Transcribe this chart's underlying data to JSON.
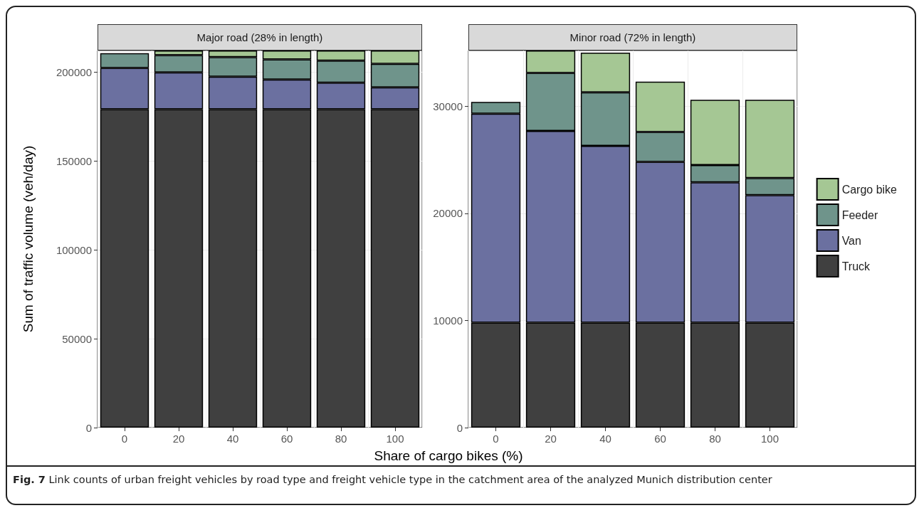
{
  "chart_data": [
    {
      "type": "bar",
      "title": "Major road (28% in length)",
      "xlabel": "Share of cargo bikes (%)",
      "ylabel": "Sum of traffic volume (veh/day)",
      "categories": [
        "0",
        "20",
        "40",
        "60",
        "80",
        "100"
      ],
      "stacked": true,
      "ylim": [
        0,
        212000
      ],
      "yticks": [
        0,
        50000,
        100000,
        150000,
        200000
      ],
      "grid": true,
      "legend": false,
      "series": [
        {
          "color": "#404040",
          "values": [
            179000,
            179000,
            179000,
            179000,
            179000,
            179000
          ]
        },
        {
          "color": "#6b70a0",
          "values": [
            23200,
            20700,
            18300,
            16700,
            14900,
            12300
          ]
        },
        {
          "color": "#6f948b",
          "values": [
            8300,
            9700,
            11000,
            11300,
            12400,
            13200
          ]
        },
        {
          "color": "#a5c794",
          "values": [
            null,
            2600,
            3700,
            5000,
            5700,
            7500
          ]
        }
      ],
      "annotations": [
        "Fig. 7 Link counts of urban freight vehicles by road type and freight vehicle type in the catchment area of the analyzed Munich distribution center"
      ]
    },
    {
      "type": "bar",
      "title": "Minor road (72% in length)",
      "categories": [
        "0",
        "20",
        "40",
        "60",
        "80",
        "100"
      ],
      "stacked": true,
      "ylim": [
        0,
        35200
      ],
      "yticks": [
        0,
        10000,
        20000,
        30000
      ],
      "grid": true,
      "legend": "right",
      "series": [
        {
          "name": "Truck",
          "color": "#404040",
          "values": [
            9800,
            9800,
            9800,
            9800,
            9800,
            9800
          ]
        },
        {
          "name": "Van",
          "color": "#6b70a0",
          "values": [
            19500,
            17900,
            16500,
            15000,
            13100,
            11900
          ]
        },
        {
          "name": "Feeder",
          "color": "#6f948b",
          "values": [
            1100,
            5400,
            5000,
            2800,
            1600,
            1600
          ]
        },
        {
          "name": "Cargo bike",
          "color": "#a5c794",
          "values": [
            null,
            2100,
            3700,
            4700,
            6100,
            7300
          ]
        }
      ]
    }
  ]
}
